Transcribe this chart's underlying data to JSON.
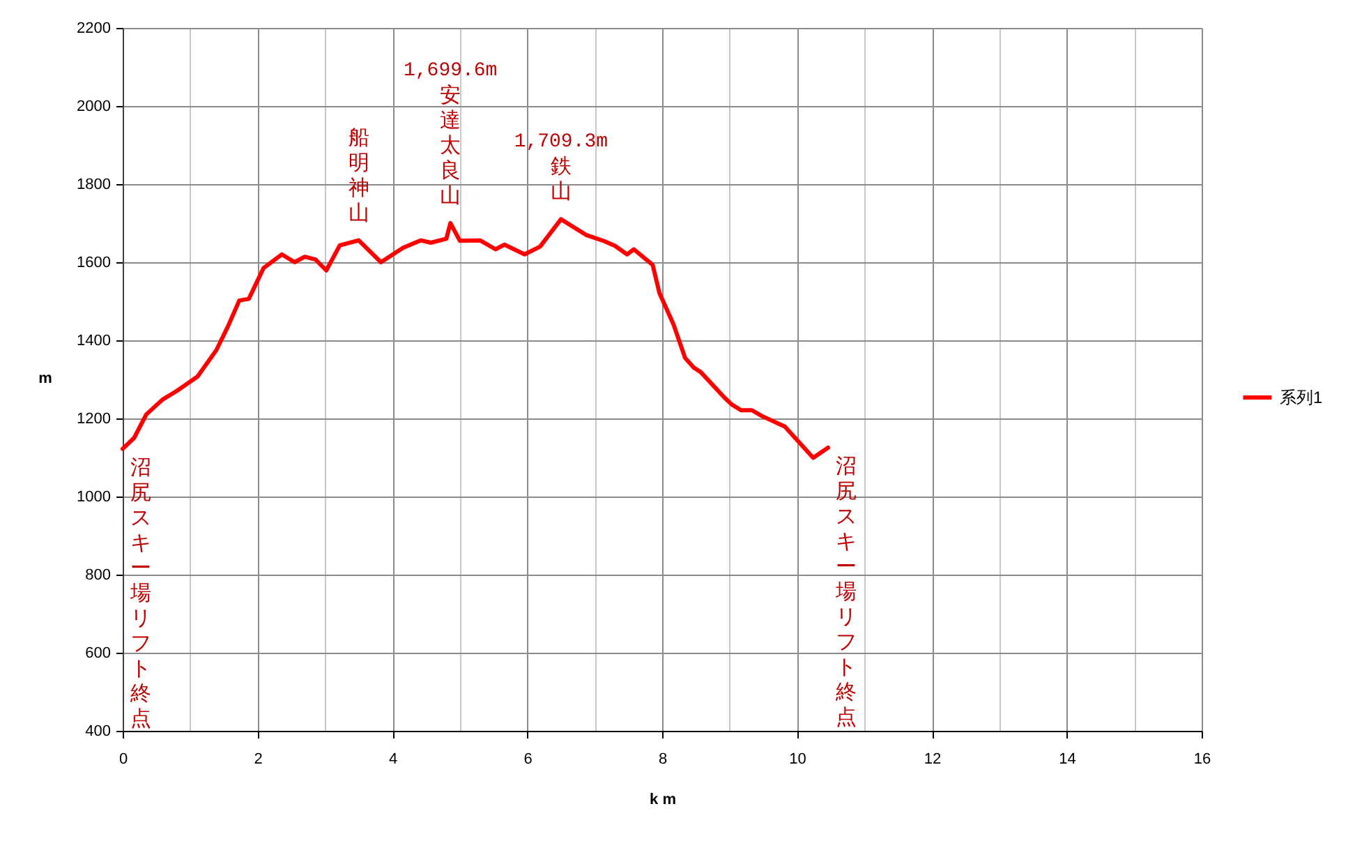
{
  "chart_data": {
    "type": "line",
    "xlabel": "k m",
    "ylabel": "m",
    "x": [
      0,
      0.17,
      0.35,
      0.59,
      0.8,
      1.11,
      1.39,
      1.56,
      1.73,
      1.87,
      2.09,
      2.36,
      2.55,
      2.7,
      2.86,
      3.02,
      3.22,
      3.5,
      3.83,
      4.16,
      4.42,
      4.57,
      4.8,
      4.86,
      5.0,
      5.3,
      5.53,
      5.66,
      5.96,
      6.19,
      6.5,
      6.87,
      7.14,
      7.3,
      7.48,
      7.58,
      7.86,
      7.96,
      8.17,
      8.34,
      8.47,
      8.57,
      8.92,
      9.03,
      9.17,
      9.33,
      9.48,
      9.82,
      10.24,
      10.46
    ],
    "series": [
      {
        "name": "系列1",
        "color": "#ff0000",
        "values": [
          1122,
          1150,
          1210,
          1248,
          1270,
          1307,
          1375,
          1435,
          1502,
          1506,
          1585,
          1620,
          1600,
          1614,
          1607,
          1579,
          1643,
          1656,
          1600,
          1637,
          1656,
          1650,
          1660,
          1700,
          1655,
          1656,
          1633,
          1645,
          1620,
          1640,
          1710,
          1670,
          1654,
          1642,
          1620,
          1633,
          1593,
          1521,
          1440,
          1355,
          1330,
          1319,
          1254,
          1236,
          1221,
          1221,
          1206,
          1179,
          1099,
          1125
        ]
      }
    ],
    "xlim": [
      0,
      16
    ],
    "ylim": [
      400,
      2200
    ],
    "xticks": [
      0,
      2,
      4,
      6,
      8,
      10,
      12,
      14,
      16
    ],
    "yticks": [
      400,
      600,
      800,
      1000,
      1200,
      1400,
      1600,
      1800,
      2000,
      2200
    ],
    "grid": true,
    "legend": "right",
    "annotations": [
      "沼尻スキー場リフト終点",
      {
        "text": "船明神山",
        "x": 3.5,
        "y": 1656
      },
      {
        "text": "安達太良山",
        "x": 4.86,
        "y": 1700
      },
      "1,699.6m",
      {
        "text": "鉄山",
        "x": 6.5,
        "y": 1710
      },
      "1,709.3m",
      "沼尻スキー場リフト終点"
    ]
  }
}
